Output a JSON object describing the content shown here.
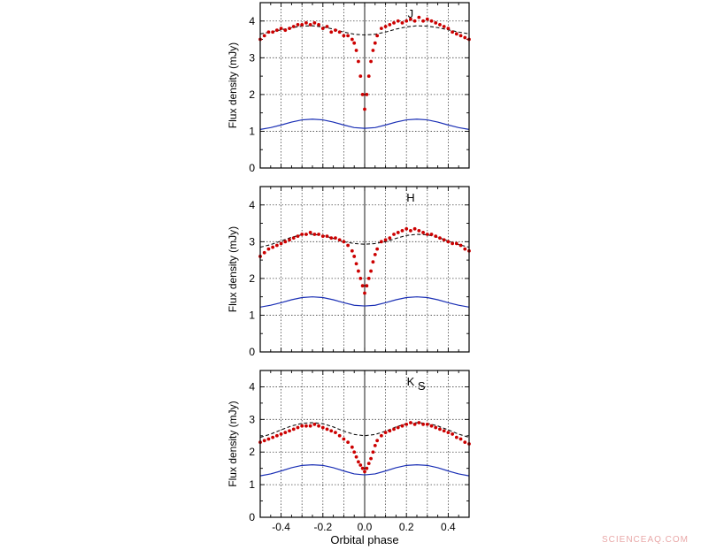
{
  "watermark": "SCIENCEAQ.COM",
  "chart_data": [
    {
      "type": "scatter",
      "band": "J",
      "ylabel": "Flux density (mJy)",
      "xlabel": "",
      "xlim": [
        -0.5,
        0.5
      ],
      "ylim": [
        0,
        4.5
      ],
      "xticks": [
        "",
        "",
        "",
        "",
        ""
      ],
      "yticks": [
        "0",
        "1",
        "2",
        "3",
        "4"
      ],
      "grid": true,
      "observed": {
        "x": [
          -0.5,
          -0.48,
          -0.46,
          -0.44,
          -0.42,
          -0.4,
          -0.38,
          -0.36,
          -0.34,
          -0.32,
          -0.3,
          -0.28,
          -0.26,
          -0.24,
          -0.22,
          -0.2,
          -0.18,
          -0.16,
          -0.14,
          -0.12,
          -0.1,
          -0.08,
          -0.06,
          -0.05,
          -0.04,
          -0.03,
          -0.02,
          -0.01,
          0.0,
          0.01,
          0.02,
          0.03,
          0.04,
          0.05,
          0.06,
          0.08,
          0.1,
          0.12,
          0.14,
          0.16,
          0.18,
          0.2,
          0.22,
          0.24,
          0.26,
          0.28,
          0.3,
          0.32,
          0.34,
          0.36,
          0.38,
          0.4,
          0.42,
          0.44,
          0.46,
          0.48,
          0.5
        ],
        "y": [
          3.5,
          3.6,
          3.7,
          3.7,
          3.75,
          3.8,
          3.75,
          3.8,
          3.85,
          3.9,
          3.9,
          3.95,
          3.9,
          3.95,
          3.9,
          3.8,
          3.85,
          3.7,
          3.75,
          3.7,
          3.6,
          3.6,
          3.5,
          3.4,
          3.2,
          2.9,
          2.5,
          2.0,
          1.6,
          2.0,
          2.5,
          2.9,
          3.2,
          3.4,
          3.6,
          3.8,
          3.85,
          3.9,
          3.95,
          4.0,
          3.95,
          4.0,
          4.05,
          4.0,
          4.1,
          4.0,
          4.05,
          4.0,
          3.95,
          3.9,
          3.85,
          3.8,
          3.7,
          3.65,
          3.6,
          3.55,
          3.5
        ]
      },
      "dashed_model": {
        "x": [
          -0.5,
          -0.45,
          -0.4,
          -0.35,
          -0.3,
          -0.25,
          -0.2,
          -0.15,
          -0.1,
          -0.05,
          0.0,
          0.05,
          0.1,
          0.15,
          0.2,
          0.25,
          0.3,
          0.35,
          0.4,
          0.45,
          0.5
        ],
        "y": [
          3.65,
          3.7,
          3.76,
          3.82,
          3.86,
          3.87,
          3.84,
          3.78,
          3.7,
          3.64,
          3.62,
          3.64,
          3.7,
          3.78,
          3.84,
          3.87,
          3.86,
          3.82,
          3.76,
          3.7,
          3.65
        ]
      },
      "solid_model": {
        "x": [
          -0.5,
          -0.45,
          -0.4,
          -0.35,
          -0.3,
          -0.25,
          -0.2,
          -0.15,
          -0.1,
          -0.05,
          0.0,
          0.05,
          0.1,
          0.15,
          0.2,
          0.25,
          0.3,
          0.35,
          0.4,
          0.45,
          0.5
        ],
        "y": [
          1.05,
          1.1,
          1.17,
          1.25,
          1.31,
          1.33,
          1.31,
          1.25,
          1.17,
          1.1,
          1.08,
          1.1,
          1.17,
          1.25,
          1.31,
          1.33,
          1.31,
          1.25,
          1.17,
          1.1,
          1.05
        ]
      }
    },
    {
      "type": "scatter",
      "band": "H",
      "ylabel": "Flux density (mJy)",
      "xlabel": "",
      "xlim": [
        -0.5,
        0.5
      ],
      "ylim": [
        0,
        4.5
      ],
      "xticks": [
        "",
        "",
        "",
        "",
        ""
      ],
      "yticks": [
        "0",
        "1",
        "2",
        "3",
        "4"
      ],
      "grid": true,
      "observed": {
        "x": [
          -0.5,
          -0.48,
          -0.46,
          -0.44,
          -0.42,
          -0.4,
          -0.38,
          -0.36,
          -0.34,
          -0.32,
          -0.3,
          -0.28,
          -0.26,
          -0.24,
          -0.22,
          -0.2,
          -0.18,
          -0.16,
          -0.14,
          -0.12,
          -0.1,
          -0.08,
          -0.06,
          -0.05,
          -0.04,
          -0.03,
          -0.02,
          -0.01,
          0.0,
          0.01,
          0.02,
          0.03,
          0.04,
          0.05,
          0.06,
          0.08,
          0.1,
          0.12,
          0.14,
          0.16,
          0.18,
          0.2,
          0.22,
          0.24,
          0.26,
          0.28,
          0.3,
          0.32,
          0.34,
          0.36,
          0.38,
          0.4,
          0.42,
          0.44,
          0.46,
          0.48,
          0.5
        ],
        "y": [
          2.6,
          2.7,
          2.8,
          2.85,
          2.9,
          2.95,
          3.0,
          3.05,
          3.1,
          3.15,
          3.2,
          3.2,
          3.25,
          3.2,
          3.2,
          3.15,
          3.15,
          3.1,
          3.1,
          3.05,
          3.0,
          2.9,
          2.75,
          2.6,
          2.4,
          2.2,
          2.0,
          1.8,
          1.6,
          1.8,
          2.0,
          2.2,
          2.45,
          2.65,
          2.8,
          3.0,
          3.05,
          3.1,
          3.2,
          3.25,
          3.3,
          3.35,
          3.3,
          3.35,
          3.3,
          3.25,
          3.2,
          3.2,
          3.15,
          3.1,
          3.05,
          3.0,
          2.95,
          2.95,
          2.9,
          2.8,
          2.75
        ]
      },
      "dashed_model": {
        "x": [
          -0.5,
          -0.45,
          -0.4,
          -0.35,
          -0.3,
          -0.25,
          -0.2,
          -0.15,
          -0.1,
          -0.05,
          0.0,
          0.05,
          0.1,
          0.15,
          0.2,
          0.25,
          0.3,
          0.35,
          0.4,
          0.45,
          0.5
        ],
        "y": [
          2.85,
          2.92,
          3.02,
          3.12,
          3.19,
          3.2,
          3.17,
          3.09,
          3.0,
          2.95,
          2.93,
          2.95,
          3.0,
          3.09,
          3.17,
          3.2,
          3.19,
          3.12,
          3.02,
          2.92,
          2.85
        ]
      },
      "solid_model": {
        "x": [
          -0.5,
          -0.45,
          -0.4,
          -0.35,
          -0.3,
          -0.25,
          -0.2,
          -0.15,
          -0.1,
          -0.05,
          0.0,
          0.05,
          0.1,
          0.15,
          0.2,
          0.25,
          0.3,
          0.35,
          0.4,
          0.45,
          0.5
        ],
        "y": [
          1.22,
          1.27,
          1.34,
          1.42,
          1.48,
          1.5,
          1.48,
          1.42,
          1.34,
          1.27,
          1.25,
          1.27,
          1.34,
          1.42,
          1.48,
          1.5,
          1.48,
          1.42,
          1.34,
          1.27,
          1.22
        ]
      }
    },
    {
      "type": "scatter",
      "band": "K",
      "band_subscript": "S",
      "ylabel": "Flux density (mJy)",
      "xlabel": "Orbital phase",
      "xlim": [
        -0.5,
        0.5
      ],
      "ylim": [
        0,
        4.5
      ],
      "xticks": [
        "-0.4",
        "-0.2",
        "0.0",
        "0.2",
        "0.4"
      ],
      "yticks": [
        "0",
        "1",
        "2",
        "3",
        "4"
      ],
      "grid": true,
      "observed": {
        "x": [
          -0.5,
          -0.48,
          -0.46,
          -0.44,
          -0.42,
          -0.4,
          -0.38,
          -0.36,
          -0.34,
          -0.32,
          -0.3,
          -0.28,
          -0.26,
          -0.24,
          -0.22,
          -0.2,
          -0.18,
          -0.16,
          -0.14,
          -0.12,
          -0.1,
          -0.08,
          -0.06,
          -0.05,
          -0.04,
          -0.03,
          -0.02,
          -0.01,
          0.0,
          0.01,
          0.02,
          0.03,
          0.04,
          0.05,
          0.06,
          0.08,
          0.1,
          0.12,
          0.14,
          0.16,
          0.18,
          0.2,
          0.22,
          0.24,
          0.26,
          0.28,
          0.3,
          0.32,
          0.34,
          0.36,
          0.38,
          0.4,
          0.42,
          0.44,
          0.46,
          0.48,
          0.5
        ],
        "y": [
          2.3,
          2.35,
          2.4,
          2.45,
          2.5,
          2.55,
          2.6,
          2.65,
          2.7,
          2.75,
          2.8,
          2.8,
          2.8,
          2.85,
          2.8,
          2.75,
          2.7,
          2.65,
          2.6,
          2.5,
          2.4,
          2.3,
          2.15,
          2.0,
          1.85,
          1.7,
          1.6,
          1.5,
          1.4,
          1.5,
          1.65,
          1.8,
          2.0,
          2.2,
          2.35,
          2.5,
          2.6,
          2.65,
          2.7,
          2.75,
          2.8,
          2.85,
          2.9,
          2.85,
          2.9,
          2.85,
          2.85,
          2.8,
          2.75,
          2.7,
          2.65,
          2.6,
          2.55,
          2.45,
          2.4,
          2.3,
          2.25
        ]
      },
      "dashed_model": {
        "x": [
          -0.5,
          -0.45,
          -0.4,
          -0.35,
          -0.3,
          -0.25,
          -0.2,
          -0.15,
          -0.1,
          -0.05,
          0.0,
          0.05,
          0.1,
          0.15,
          0.2,
          0.25,
          0.3,
          0.35,
          0.4,
          0.45,
          0.5
        ],
        "y": [
          2.45,
          2.55,
          2.68,
          2.8,
          2.88,
          2.9,
          2.87,
          2.77,
          2.64,
          2.54,
          2.5,
          2.54,
          2.64,
          2.77,
          2.87,
          2.9,
          2.88,
          2.8,
          2.68,
          2.55,
          2.45
        ]
      },
      "solid_model": {
        "x": [
          -0.5,
          -0.45,
          -0.4,
          -0.35,
          -0.3,
          -0.25,
          -0.2,
          -0.15,
          -0.1,
          -0.05,
          0.0,
          0.05,
          0.1,
          0.15,
          0.2,
          0.25,
          0.3,
          0.35,
          0.4,
          0.45,
          0.5
        ],
        "y": [
          1.27,
          1.33,
          1.42,
          1.52,
          1.59,
          1.61,
          1.59,
          1.52,
          1.42,
          1.33,
          1.3,
          1.33,
          1.42,
          1.52,
          1.59,
          1.61,
          1.59,
          1.52,
          1.42,
          1.33,
          1.27
        ]
      }
    }
  ],
  "colors": {
    "observed": "#cc0000",
    "solid_model": "#1a2fb5",
    "dashed_model": "#111111",
    "grid": "#444444",
    "axis": "#000000"
  }
}
